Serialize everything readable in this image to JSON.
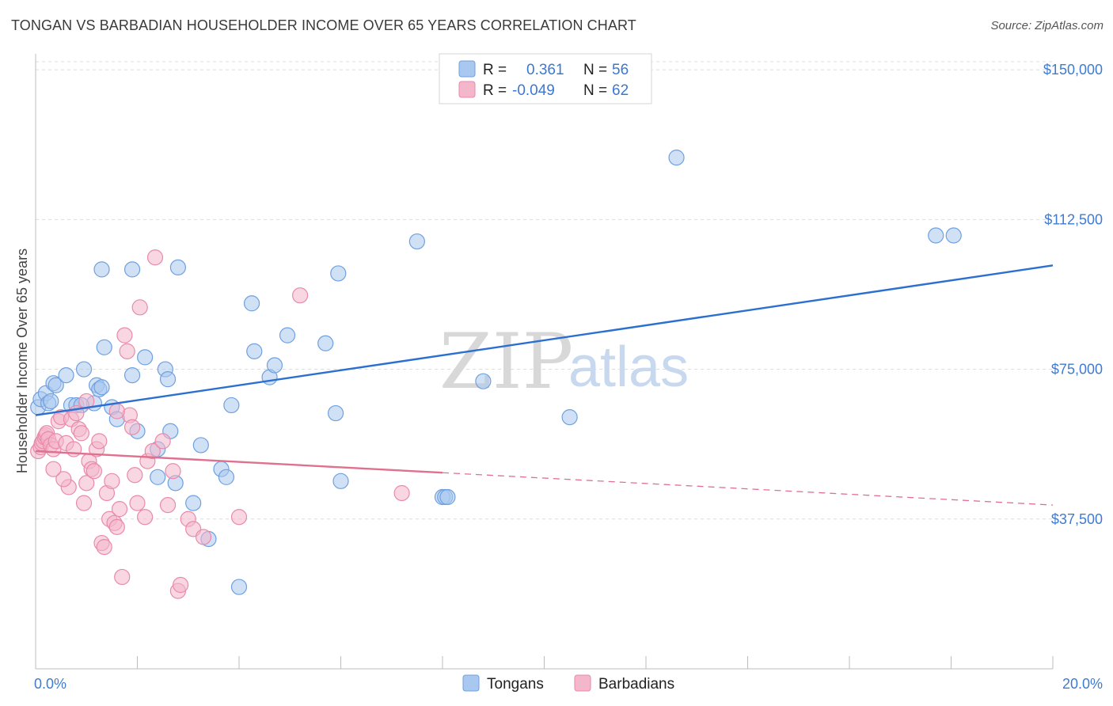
{
  "header": {
    "title": "TONGAN VS BARBADIAN HOUSEHOLDER INCOME OVER 65 YEARS CORRELATION CHART",
    "source": "Source: ZipAtlas.com"
  },
  "watermark": {
    "zip": "ZIP",
    "atlas": "atlas"
  },
  "legend": {
    "rows": [
      {
        "r_label": "R =",
        "r_value": "0.361",
        "n_label": "N =",
        "n_value": "56",
        "color": "#a9c8ef"
      },
      {
        "r_label": "R =",
        "r_value": "-0.049",
        "n_label": "N =",
        "n_value": "62",
        "color": "#f4b6cb"
      }
    ]
  },
  "bottom_legend": {
    "items": [
      {
        "label": "Tongans",
        "color": "#a9c8ef"
      },
      {
        "label": "Barbadians",
        "color": "#f4b6cb"
      }
    ]
  },
  "chart_data": {
    "type": "scatter",
    "title": "TONGAN VS BARBADIAN HOUSEHOLDER INCOME OVER 65 YEARS CORRELATION CHART",
    "xlabel": "",
    "ylabel": "Householder Income Over 65 years",
    "xlim": [
      0,
      20
    ],
    "ylim": [
      0,
      152000
    ],
    "x_tick_labels": [
      "0.0%",
      "20.0%"
    ],
    "y_ticks": [
      37500,
      75000,
      112500,
      150000
    ],
    "y_tick_labels": [
      "$37,500",
      "$75,000",
      "$112,500",
      "$150,000"
    ],
    "grid": true,
    "series": [
      {
        "name": "Tongans",
        "color": "#6fa0e0",
        "fill": "#a9c8ef",
        "trend": {
          "x": [
            0,
            20
          ],
          "y": [
            63500,
            101000
          ],
          "color": "#2b6fd1",
          "dashed_from": null
        },
        "points": [
          [
            0.05,
            65500
          ],
          [
            0.1,
            67500
          ],
          [
            0.2,
            69000
          ],
          [
            0.25,
            66500
          ],
          [
            0.3,
            67000
          ],
          [
            0.35,
            71500
          ],
          [
            0.4,
            71000
          ],
          [
            0.6,
            73500
          ],
          [
            0.7,
            66000
          ],
          [
            0.8,
            66000
          ],
          [
            0.95,
            75000
          ],
          [
            1.15,
            66500
          ],
          [
            1.2,
            71000
          ],
          [
            1.25,
            70000
          ],
          [
            1.3,
            70500
          ],
          [
            1.35,
            80500
          ],
          [
            1.5,
            65500
          ],
          [
            1.6,
            62500
          ],
          [
            1.9,
            73500
          ],
          [
            2.0,
            59500
          ],
          [
            2.15,
            78000
          ],
          [
            2.4,
            55000
          ],
          [
            2.4,
            48000
          ],
          [
            2.55,
            75000
          ],
          [
            2.6,
            72500
          ],
          [
            2.65,
            59500
          ],
          [
            2.75,
            46500
          ],
          [
            2.8,
            100500
          ],
          [
            3.1,
            41500
          ],
          [
            3.25,
            56000
          ],
          [
            3.4,
            32500
          ],
          [
            3.65,
            50000
          ],
          [
            3.75,
            48000
          ],
          [
            3.85,
            66000
          ],
          [
            4.0,
            20500
          ],
          [
            4.25,
            91500
          ],
          [
            4.3,
            79500
          ],
          [
            4.6,
            73000
          ],
          [
            4.7,
            76000
          ],
          [
            4.95,
            83500
          ],
          [
            5.7,
            81500
          ],
          [
            5.9,
            64000
          ],
          [
            5.95,
            99000
          ],
          [
            6.0,
            47000
          ],
          [
            7.5,
            107000
          ],
          [
            8.0,
            43000
          ],
          [
            8.05,
            43000
          ],
          [
            8.1,
            43000
          ],
          [
            8.8,
            72000
          ],
          [
            10.5,
            63000
          ],
          [
            12.6,
            128000
          ],
          [
            17.7,
            108500
          ],
          [
            18.05,
            108500
          ],
          [
            1.3,
            100000
          ],
          [
            1.9,
            100000
          ],
          [
            0.9,
            66000
          ]
        ]
      },
      {
        "name": "Barbadians",
        "color": "#e98aab",
        "fill": "#f4b6cb",
        "trend": {
          "x": [
            0,
            20
          ],
          "y": [
            54500,
            41000
          ],
          "color": "#e0708f",
          "dashed_from": 8.0
        },
        "points": [
          [
            0.05,
            54500
          ],
          [
            0.1,
            55500
          ],
          [
            0.12,
            56500
          ],
          [
            0.15,
            57000
          ],
          [
            0.18,
            58000
          ],
          [
            0.2,
            58500
          ],
          [
            0.22,
            59000
          ],
          [
            0.25,
            57500
          ],
          [
            0.3,
            56000
          ],
          [
            0.35,
            55000
          ],
          [
            0.4,
            57000
          ],
          [
            0.45,
            62000
          ],
          [
            0.5,
            63000
          ],
          [
            0.6,
            56500
          ],
          [
            0.65,
            45500
          ],
          [
            0.7,
            62500
          ],
          [
            0.75,
            55000
          ],
          [
            0.8,
            64000
          ],
          [
            0.85,
            60000
          ],
          [
            0.9,
            59000
          ],
          [
            0.95,
            41500
          ],
          [
            1.0,
            46500
          ],
          [
            1.05,
            52000
          ],
          [
            1.1,
            50000
          ],
          [
            1.15,
            49500
          ],
          [
            1.2,
            55000
          ],
          [
            1.25,
            57000
          ],
          [
            1.3,
            31500
          ],
          [
            1.35,
            30500
          ],
          [
            1.4,
            44000
          ],
          [
            1.45,
            37500
          ],
          [
            1.5,
            47000
          ],
          [
            1.55,
            36500
          ],
          [
            1.6,
            35500
          ],
          [
            1.65,
            40000
          ],
          [
            1.7,
            23000
          ],
          [
            1.75,
            83500
          ],
          [
            1.8,
            79500
          ],
          [
            1.85,
            63500
          ],
          [
            1.9,
            60500
          ],
          [
            1.95,
            48500
          ],
          [
            2.0,
            41500
          ],
          [
            2.05,
            90500
          ],
          [
            2.15,
            38000
          ],
          [
            2.2,
            52000
          ],
          [
            2.3,
            54500
          ],
          [
            2.35,
            103000
          ],
          [
            2.5,
            57000
          ],
          [
            2.6,
            41000
          ],
          [
            2.7,
            49500
          ],
          [
            2.8,
            19500
          ],
          [
            2.85,
            21000
          ],
          [
            3.0,
            37500
          ],
          [
            3.1,
            35000
          ],
          [
            3.3,
            33000
          ],
          [
            4.0,
            38000
          ],
          [
            5.2,
            93500
          ],
          [
            7.2,
            44000
          ],
          [
            1.0,
            67000
          ],
          [
            1.6,
            64500
          ],
          [
            0.55,
            47500
          ],
          [
            0.35,
            50000
          ]
        ]
      }
    ]
  }
}
